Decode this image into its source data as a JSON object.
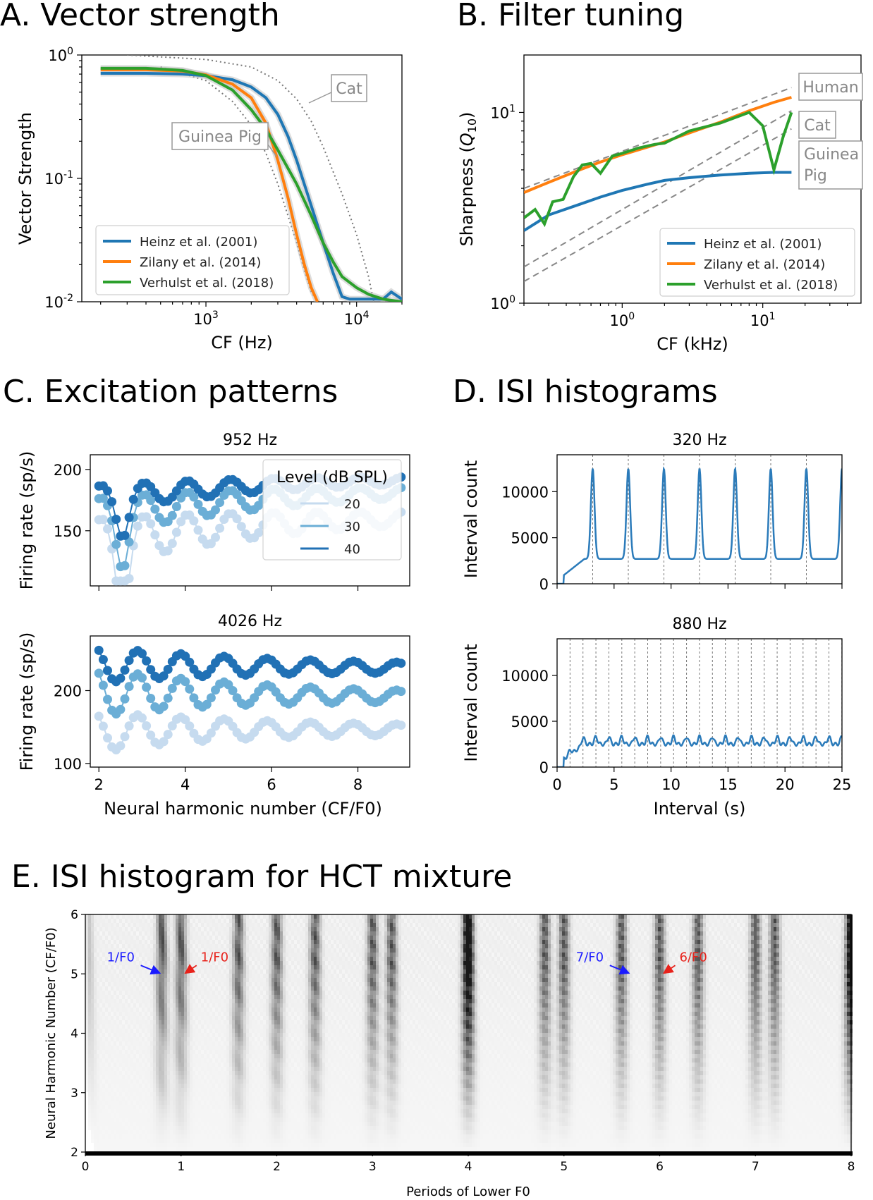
{
  "panels": {
    "A": "A. Vector strength",
    "B": "B. Filter tuning",
    "C": "C. Excitation patterns",
    "D": "D. ISI histograms",
    "E": "E. ISI histogram for HCT mixture"
  },
  "chart_data": [
    {
      "id": "A",
      "type": "line",
      "title": "A. Vector strength",
      "xlabel": "CF (Hz)",
      "ylabel": "Vector Strength",
      "xscale": "log",
      "yscale": "log",
      "xlim": [
        150,
        20000
      ],
      "ylim": [
        0.01,
        1
      ],
      "xticks": [
        "10^3",
        "10^4"
      ],
      "yticks": [
        "10^0",
        "10^-1",
        "10^-2"
      ],
      "legend": "lower-left",
      "series": [
        {
          "name": "Heinz et al. (2001)",
          "color": "#1f77b4",
          "x": [
            200,
            400,
            700,
            1000,
            1500,
            2000,
            2500,
            3000,
            3500,
            4000,
            5000,
            6000,
            7000,
            8000,
            9000,
            10000,
            15000,
            17000,
            20000
          ],
          "y": [
            0.71,
            0.71,
            0.7,
            0.68,
            0.63,
            0.55,
            0.45,
            0.33,
            0.22,
            0.14,
            0.06,
            0.03,
            0.017,
            0.011,
            0.0105,
            0.0105,
            0.0105,
            0.012,
            0.0105
          ]
        },
        {
          "name": "Zilany et al. (2014)",
          "color": "#ff7f0e",
          "x": [
            200,
            400,
            700,
            1000,
            1500,
            2000,
            2500,
            3000,
            3500,
            4000,
            4500,
            5000,
            5500
          ],
          "y": [
            0.76,
            0.76,
            0.74,
            0.69,
            0.58,
            0.45,
            0.28,
            0.14,
            0.07,
            0.035,
            0.02,
            0.013,
            0.01
          ]
        },
        {
          "name": "Verhulst et al. (2018)",
          "color": "#2ca02c",
          "x": [
            200,
            400,
            700,
            1000,
            1500,
            2000,
            2500,
            3000,
            4000,
            5000,
            6000,
            7000,
            8000,
            10000,
            12000,
            15000,
            20000
          ],
          "y": [
            0.78,
            0.78,
            0.75,
            0.68,
            0.52,
            0.36,
            0.25,
            0.17,
            0.09,
            0.05,
            0.03,
            0.021,
            0.016,
            0.013,
            0.0115,
            0.0105,
            0.01
          ]
        }
      ],
      "reference_curves": [
        {
          "name": "Cat",
          "x": [
            300,
            1000,
            2000,
            3000,
            4000,
            5000,
            6000,
            8000,
            10000,
            12000,
            13000
          ],
          "y": [
            1.0,
            0.92,
            0.8,
            0.62,
            0.44,
            0.29,
            0.18,
            0.075,
            0.035,
            0.016,
            0.01
          ]
        },
        {
          "name": "Guinea Pig",
          "x": [
            500,
            1000,
            1500,
            2000,
            2500,
            3000,
            3500,
            4000,
            4500,
            5000,
            5500
          ],
          "y": [
            0.8,
            0.62,
            0.42,
            0.27,
            0.16,
            0.09,
            0.05,
            0.03,
            0.018,
            0.012,
            0.01
          ]
        }
      ],
      "annotations": [
        "Cat",
        "Guinea Pig"
      ]
    },
    {
      "id": "B",
      "type": "line",
      "title": "B. Filter tuning",
      "xlabel": "CF (kHz)",
      "ylabel": "Sharpness (Q10)",
      "ylabel_main": "Sharpness (",
      "ylabel_var": "Q",
      "ylabel_sub": "10",
      "ylabel_end": ")",
      "xscale": "log",
      "yscale": "log",
      "xlim": [
        0.2,
        50
      ],
      "ylim": [
        1,
        20
      ],
      "xticks": [
        "10^0",
        "10^1"
      ],
      "yticks": [
        "10^0",
        "10^1"
      ],
      "legend": "lower-right",
      "series": [
        {
          "name": "Heinz et al. (2001)",
          "color": "#1f77b4",
          "x": [
            0.2,
            0.3,
            0.5,
            0.7,
            1.0,
            1.5,
            2,
            3,
            5,
            8,
            12,
            16
          ],
          "y": [
            2.4,
            2.9,
            3.3,
            3.6,
            3.9,
            4.2,
            4.4,
            4.55,
            4.7,
            4.8,
            4.85,
            4.85
          ]
        },
        {
          "name": "Zilany et al. (2014)",
          "color": "#ff7f0e",
          "x": [
            0.2,
            0.3,
            0.5,
            0.7,
            1.0,
            2,
            3,
            5,
            8,
            12,
            16
          ],
          "y": [
            3.8,
            4.3,
            5.0,
            5.5,
            6.0,
            7.0,
            7.8,
            8.9,
            10.2,
            11.3,
            12.0
          ]
        },
        {
          "name": "Verhulst et al. (2018)",
          "color": "#2ca02c",
          "x": [
            0.2,
            0.24,
            0.28,
            0.32,
            0.38,
            0.45,
            0.52,
            0.6,
            0.7,
            0.85,
            1.0,
            1.3,
            1.7,
            2,
            3,
            5,
            8,
            10,
            12,
            14,
            16
          ],
          "y": [
            2.8,
            3.1,
            2.6,
            3.4,
            3.5,
            4.6,
            5.3,
            5.4,
            4.8,
            5.9,
            6.1,
            6.5,
            6.8,
            6.9,
            8.0,
            8.8,
            10.0,
            8.5,
            5.0,
            7.5,
            10.0
          ]
        }
      ],
      "reference_curves": [
        {
          "name": "Human",
          "x": [
            0.2,
            16
          ],
          "y": [
            4.0,
            13.5
          ]
        },
        {
          "name": "Cat",
          "x": [
            0.2,
            16
          ],
          "y": [
            1.55,
            10.2
          ]
        },
        {
          "name": "Guinea Pig",
          "x": [
            0.2,
            16
          ],
          "y": [
            1.3,
            8.2
          ]
        }
      ],
      "annotations": [
        "Human",
        "Cat",
        "Guinea Pig"
      ]
    },
    {
      "id": "C",
      "type": "line",
      "title": "C. Excitation patterns",
      "xlabel": "Neural harmonic number (CF/F0)",
      "ylabel": "Firing rate (sp/s)",
      "legend_title": "Level (dB SPL)",
      "legend": "upper-right",
      "levels": [
        "20",
        "30",
        "40"
      ],
      "colors": [
        "#c6dbef",
        "#6baed6",
        "#2171b5"
      ],
      "xlim": [
        1.8,
        9.2
      ],
      "xticks": [
        "2",
        "4",
        "6",
        "8"
      ],
      "subplots": [
        {
          "title": "952 Hz",
          "ylim": [
            105,
            212
          ],
          "yticks": [
            "150",
            "200"
          ]
        },
        {
          "title": "4026 Hz",
          "ylim": [
            95,
            275
          ],
          "yticks": [
            "100",
            "200"
          ]
        }
      ]
    },
    {
      "id": "D",
      "type": "line",
      "title": "D. ISI histograms",
      "xlabel": "Interval (s)",
      "ylabel": "Interval count",
      "color": "#2b7bba",
      "xlim": [
        0,
        25
      ],
      "ylim": [
        0,
        14000
      ],
      "xticks": [
        "0",
        "5",
        "10",
        "15",
        "20",
        "25"
      ],
      "yticks": [
        "0",
        "5000",
        "10000"
      ],
      "subplots": [
        {
          "title": "320 Hz",
          "period": 3.125,
          "peak": 12500,
          "floor": 2700
        },
        {
          "title": "880 Hz",
          "period": 1.136,
          "peak": 3300,
          "floor": 2500
        }
      ]
    },
    {
      "id": "E",
      "type": "heatmap",
      "title": "E. ISI histogram for HCT mixture",
      "xlabel": "Periods of Lower F0",
      "ylabel": "Neural Harmonic Number (CF/F0)",
      "xlim": [
        0,
        8
      ],
      "ylim": [
        2,
        6
      ],
      "xticks": [
        "0",
        "1",
        "2",
        "3",
        "4",
        "5",
        "6",
        "7",
        "8"
      ],
      "yticks": [
        "2",
        "3",
        "4",
        "5",
        "6"
      ],
      "colormap": "greys",
      "annotations": [
        {
          "text": "1/F0",
          "color": "#1a1aff",
          "x": 0.8,
          "y": 5.0
        },
        {
          "text": "1/F0",
          "color": "#e8221b",
          "x": 1.0,
          "y": 5.0
        },
        {
          "text": "7/F0",
          "color": "#1a1aff",
          "x": 5.7,
          "y": 5.0
        },
        {
          "text": "6/F0",
          "color": "#e8221b",
          "x": 6.0,
          "y": 5.0
        }
      ]
    }
  ]
}
